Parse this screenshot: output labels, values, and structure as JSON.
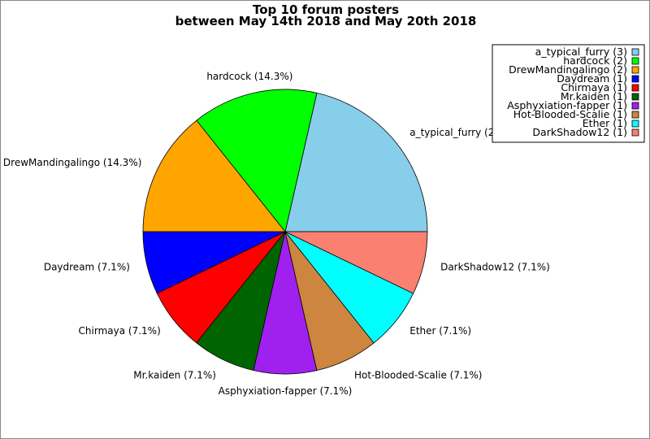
{
  "chart_data": {
    "type": "pie",
    "title": [
      "Top 10 forum posters",
      "between May 14th 2018 and May 20th 2018"
    ],
    "start_angle_deg": 0,
    "direction": "counterclockwise",
    "legend_placement": "top-right",
    "slices": [
      {
        "label": "a_typical_furry",
        "value": 3,
        "percent_label": "a_typical_furry (21.4%)",
        "legend": "a_typical_furry (3)",
        "color": "#87ceeb"
      },
      {
        "label": "hardcock",
        "value": 2,
        "percent_label": "hardcock (14.3%)",
        "legend": "hardcock (2)",
        "color": "#00ff00"
      },
      {
        "label": "DrewMandingalingo",
        "value": 2,
        "percent_label": "DrewMandingalingo (14.3%)",
        "legend": "DrewMandingalingo (2)",
        "color": "#ffa500"
      },
      {
        "label": "Daydream",
        "value": 1,
        "percent_label": "Daydream (7.1%)",
        "legend": "Daydream (1)",
        "color": "#0000ff"
      },
      {
        "label": "Chirmaya",
        "value": 1,
        "percent_label": "Chirmaya (7.1%)",
        "legend": "Chirmaya (1)",
        "color": "#ff0000"
      },
      {
        "label": "Mr.kaiden",
        "value": 1,
        "percent_label": "Mr.kaiden (7.1%)",
        "legend": "Mr.kaiden (1)",
        "color": "#006400"
      },
      {
        "label": "Asphyxiation-fapper",
        "value": 1,
        "percent_label": "Asphyxiation-fapper (7.1%)",
        "legend": "Asphyxiation-fapper (1)",
        "color": "#a020f0"
      },
      {
        "label": "Hot-Blooded-Scalie",
        "value": 1,
        "percent_label": "Hot-Blooded-Scalie (7.1%)",
        "legend": "Hot-Blooded-Scalie (1)",
        "color": "#cd853f"
      },
      {
        "label": "Ether",
        "value": 1,
        "percent_label": "Ether (7.1%)",
        "legend": "Ether (1)",
        "color": "#00ffff"
      },
      {
        "label": "DarkShadow12",
        "value": 1,
        "percent_label": "DarkShadow12 (7.1%)",
        "legend": "DarkShadow12 (1)",
        "color": "#fa8072"
      }
    ]
  }
}
